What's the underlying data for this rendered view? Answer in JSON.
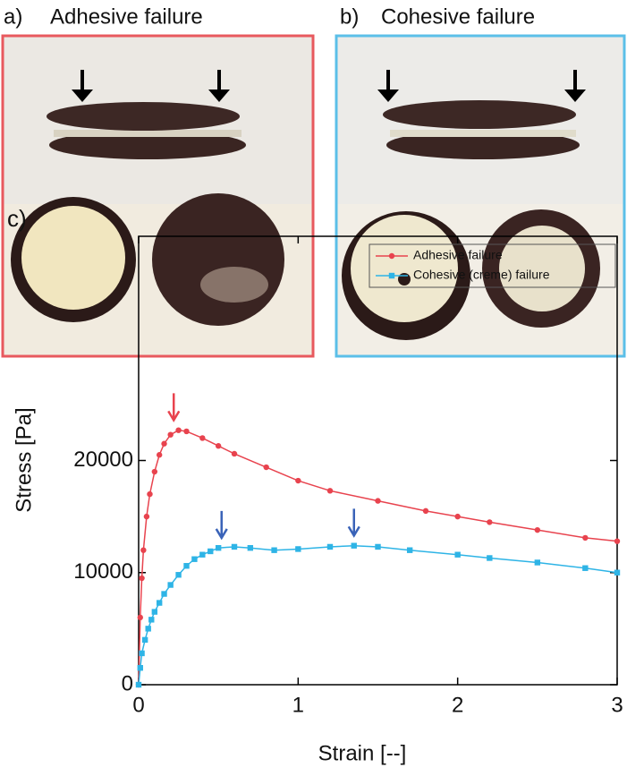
{
  "panels": [
    {
      "label": "a)",
      "title": "Adhesive failure"
    },
    {
      "label": "b)",
      "title": "Cohesive failure"
    }
  ],
  "chart_data": {
    "type": "line",
    "label": "c)",
    "xlabel": "Strain [--]",
    "ylabel": "Stress [Pa]",
    "xlim": [
      0,
      3
    ],
    "xticks": [
      0,
      1,
      2,
      3
    ],
    "ylim": [
      0,
      40000
    ],
    "yticks": [
      0,
      10000,
      20000
    ],
    "legend": "upper right",
    "series": [
      {
        "name": "Adhesive failure",
        "color": "#e8434e",
        "marker": "circle",
        "x": [
          0,
          0.01,
          0.02,
          0.03,
          0.05,
          0.07,
          0.1,
          0.13,
          0.16,
          0.2,
          0.25,
          0.3,
          0.4,
          0.5,
          0.6,
          0.8,
          1,
          1.2,
          1.5,
          1.8,
          2,
          2.2,
          2.5,
          2.8,
          3
        ],
        "values": [
          0,
          6000,
          9500,
          12000,
          15000,
          17000,
          19000,
          20500,
          21500,
          22300,
          22700,
          22600,
          22000,
          21300,
          20600,
          19400,
          18200,
          17300,
          16400,
          15500,
          15000,
          14500,
          13800,
          13100,
          12800
        ]
      },
      {
        "name": "Cohesive (creme) failure",
        "color": "#2eb4e6",
        "marker": "square",
        "x": [
          0,
          0.01,
          0.02,
          0.04,
          0.06,
          0.08,
          0.1,
          0.13,
          0.16,
          0.2,
          0.25,
          0.3,
          0.35,
          0.4,
          0.45,
          0.5,
          0.6,
          0.7,
          0.85,
          1,
          1.2,
          1.35,
          1.5,
          1.7,
          2,
          2.2,
          2.5,
          2.8,
          3
        ],
        "values": [
          0,
          1500,
          2800,
          4000,
          5000,
          5800,
          6500,
          7300,
          8100,
          8900,
          9800,
          10600,
          11200,
          11600,
          11900,
          12200,
          12300,
          12200,
          12000,
          12100,
          12300,
          12400,
          12300,
          12000,
          11600,
          11300,
          10900,
          10400,
          10000
        ]
      }
    ],
    "annotations": [
      {
        "x": 0.22,
        "y": 23600,
        "color": "#e8434e"
      },
      {
        "x": 0.52,
        "y": 13100,
        "color": "#3a63b8"
      },
      {
        "x": 1.35,
        "y": 13300,
        "color": "#3a63b8"
      }
    ]
  }
}
